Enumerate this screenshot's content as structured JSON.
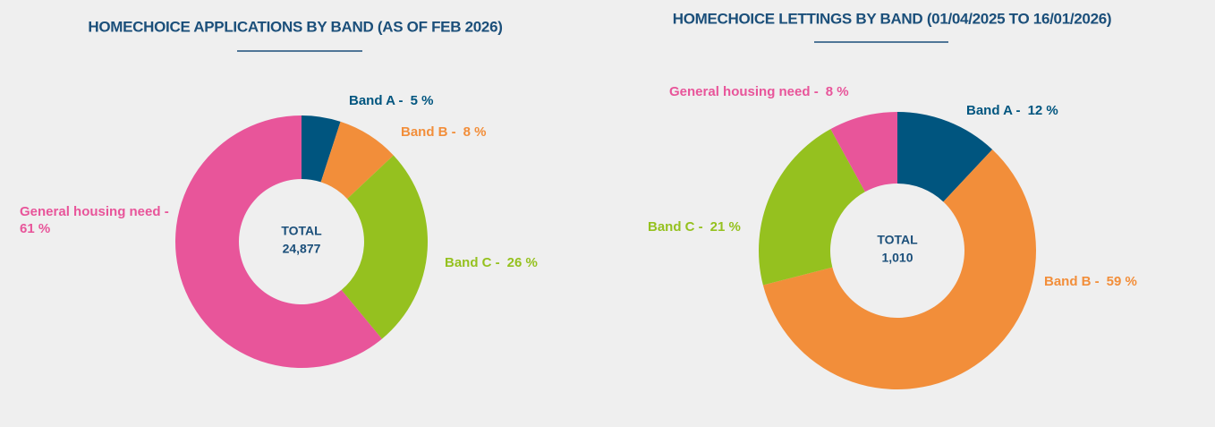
{
  "chart_data": [
    {
      "type": "pie",
      "title": "HOMECHOICE APPLICATIONS BY BAND (AS OF FEB 2026)",
      "categories": [
        "Band A -",
        "Band B -",
        "Band C -",
        "General housing need -"
      ],
      "values": [
        5,
        8,
        26,
        61
      ],
      "value_labels": [
        "5 %",
        "8 %",
        "26 %",
        "61 %"
      ],
      "colors": [
        "#00557f",
        "#f28e3a",
        "#95c11f",
        "#e8559a"
      ],
      "total_title": "TOTAL",
      "total": {
        "value": 24877,
        "label": "24,877"
      }
    },
    {
      "type": "pie",
      "title": "HOMECHOICE LETTINGS BY BAND (01/04/2025 TO 16/01/2026)",
      "categories": [
        "Band A -",
        "Band B -",
        "Band C -",
        "General housing need -"
      ],
      "values": [
        12,
        59,
        21,
        8
      ],
      "value_labels": [
        "12 %",
        "59 %",
        "21 %",
        "8 %"
      ],
      "colors": [
        "#00557f",
        "#f28e3a",
        "#95c11f",
        "#e8559a"
      ],
      "total_title": "TOTAL",
      "total": {
        "value": 1010,
        "label": "1,010"
      }
    }
  ]
}
